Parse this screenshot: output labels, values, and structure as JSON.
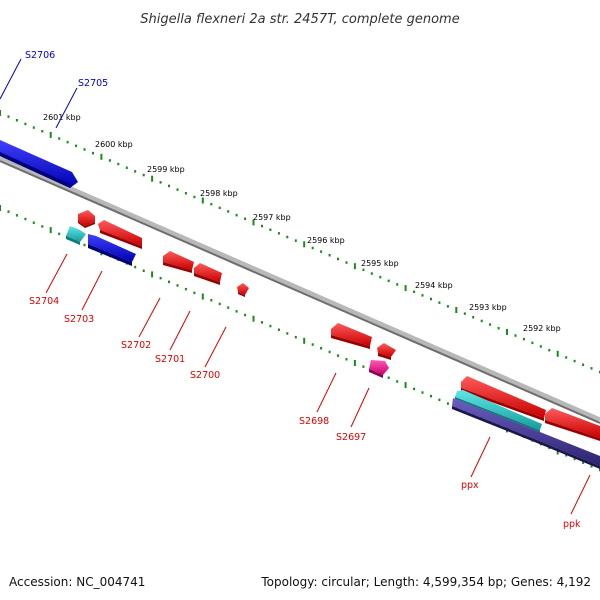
{
  "title": "Shigella flexneri 2a str. 2457T, complete genome",
  "footer": {
    "accession": "Accession: NC_004741",
    "topology": "Topology: circular; Length: 4,599,354 bp; Genes: 4,192"
  },
  "colors": {
    "backbone": "#8c8c8c",
    "tick": "#1a8a1a",
    "forward_gene": "#ff0000",
    "reverse_gene": "#0000ff",
    "cyan_gene": "#33cccc",
    "pink_gene": "#ff1493",
    "purple_gene": "#4b3f99",
    "label_forward": "#e00000",
    "label_reverse": "#0000cc"
  },
  "kbp_markers": [
    "2601 kbp",
    "2600 kbp",
    "2599 kbp",
    "2598 kbp",
    "2597 kbp",
    "2596 kbp",
    "2595 kbp",
    "2594 kbp",
    "2593 kbp",
    "2592 kbp"
  ],
  "features": [
    {
      "label": "S2706",
      "strand": "reverse",
      "type": "CDS"
    },
    {
      "label": "S2705",
      "strand": "reverse",
      "type": "CDS"
    },
    {
      "label": "S2704",
      "strand": "forward",
      "type": "CDS"
    },
    {
      "label": "S2703",
      "strand": "forward",
      "type": "CDS"
    },
    {
      "label": "S2702",
      "strand": "forward",
      "type": "CDS"
    },
    {
      "label": "S2701",
      "strand": "forward",
      "type": "CDS"
    },
    {
      "label": "S2700",
      "strand": "forward",
      "type": "CDS"
    },
    {
      "label": "S2698",
      "strand": "forward",
      "type": "CDS"
    },
    {
      "label": "S2697",
      "strand": "forward",
      "type": "CDS"
    },
    {
      "label": "ppx",
      "strand": "forward",
      "type": "gene"
    },
    {
      "label": "ppk",
      "strand": "forward",
      "type": "gene"
    }
  ]
}
